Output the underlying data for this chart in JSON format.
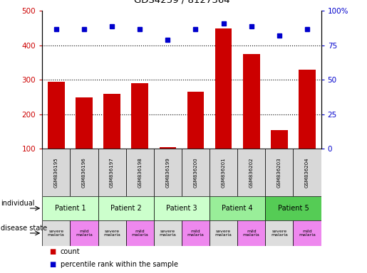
{
  "title": "GDS4259 / 8127364",
  "samples": [
    "GSM836195",
    "GSM836196",
    "GSM836197",
    "GSM836198",
    "GSM836199",
    "GSM836200",
    "GSM836201",
    "GSM836202",
    "GSM836203",
    "GSM836204"
  ],
  "counts": [
    295,
    250,
    260,
    290,
    105,
    265,
    450,
    375,
    155,
    330
  ],
  "percentiles": [
    87,
    87,
    89,
    87,
    79,
    87,
    91,
    89,
    82,
    87
  ],
  "ylim_left": [
    100,
    500
  ],
  "ylim_right": [
    0,
    100
  ],
  "yticks_left": [
    100,
    200,
    300,
    400,
    500
  ],
  "yticks_right": [
    0,
    25,
    50,
    75,
    100
  ],
  "yticklabels_right": [
    "0",
    "25",
    "50",
    "75",
    "100%"
  ],
  "bar_color": "#cc0000",
  "dot_color": "#0000cc",
  "patients": [
    {
      "label": "Patient 1",
      "cols": [
        0,
        1
      ],
      "color": "#ccffcc"
    },
    {
      "label": "Patient 2",
      "cols": [
        2,
        3
      ],
      "color": "#ccffcc"
    },
    {
      "label": "Patient 3",
      "cols": [
        4,
        5
      ],
      "color": "#ccffcc"
    },
    {
      "label": "Patient 4",
      "cols": [
        6,
        7
      ],
      "color": "#99ee99"
    },
    {
      "label": "Patient 5",
      "cols": [
        8,
        9
      ],
      "color": "#55cc55"
    }
  ],
  "disease_severe_color": "#dddddd",
  "disease_mild_color": "#ee88ee",
  "grid_color": "black",
  "tick_label_color_left": "#cc0000",
  "tick_label_color_right": "#0000cc",
  "legend_count_label": "count",
  "legend_percentile_label": "percentile rank within the sample",
  "left_label_individual": "individual",
  "left_label_disease": "disease state",
  "left_arrow_color": "black"
}
